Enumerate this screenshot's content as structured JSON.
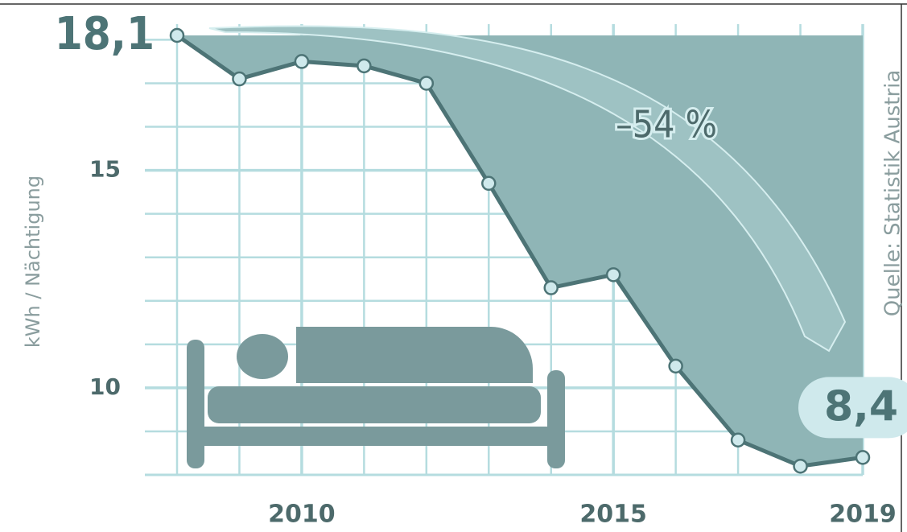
{
  "chart_data": {
    "type": "area-line",
    "y_label": "kWh / Nächtigung",
    "annotation": "–54 %",
    "source": "Quelle: Statistik Austria",
    "x": [
      2008,
      2009,
      2010,
      2011,
      2012,
      2013,
      2014,
      2015,
      2016,
      2017,
      2018,
      2019
    ],
    "values": [
      18.1,
      17.1,
      17.5,
      17.4,
      17.0,
      14.7,
      12.3,
      12.6,
      10.5,
      8.8,
      8.2,
      8.4
    ],
    "value_labels": [
      "18,1",
      null,
      null,
      null,
      null,
      null,
      null,
      null,
      null,
      null,
      null,
      "8,4"
    ],
    "color": "#4d7476",
    "fill": "#8fb5b6",
    "xlim": [
      2008,
      2019
    ],
    "xticks": [
      2010,
      2015,
      2019
    ],
    "minor_xticks": [
      2008,
      2009,
      2011,
      2012,
      2013,
      2014,
      2016,
      2017,
      2018
    ],
    "ylim": [
      8,
      18.1
    ],
    "yticks": [
      10,
      15
    ],
    "minor_yticks": [
      8,
      9,
      11,
      12,
      13,
      14,
      16,
      17,
      18
    ],
    "grid": true
  }
}
